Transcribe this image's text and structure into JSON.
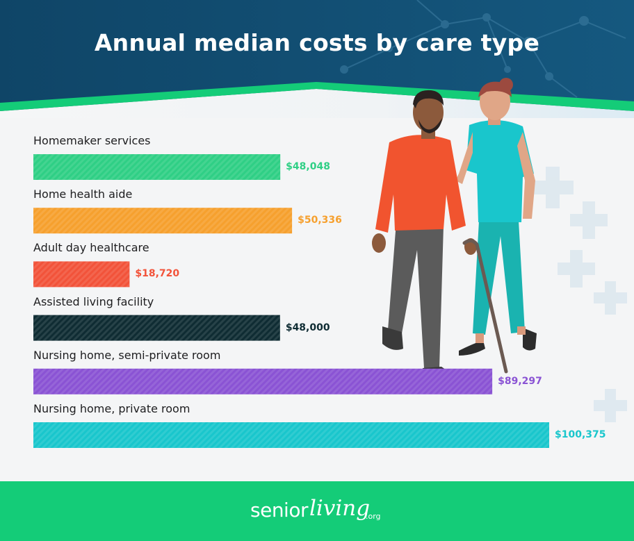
{
  "chart_data": {
    "type": "bar",
    "orientation": "horizontal",
    "title": "Annual median costs by care type",
    "categories": [
      "Homemaker services",
      "Home health aide",
      "Adult day healthcare",
      "Assisted living facility",
      "Nursing home, semi-private room",
      "Nursing home, private room"
    ],
    "values": [
      48048,
      50336,
      18720,
      48000,
      89297,
      100375
    ],
    "value_labels": [
      "$48,048",
      "$50,336",
      "$18,720",
      "$48,000",
      "$89,297",
      "$100,375"
    ],
    "colors": [
      "#2fcf85",
      "#f6a02e",
      "#f2533a",
      "#0f2c33",
      "#8a53d4",
      "#19c6cc"
    ],
    "label_colors": [
      "#2fcf85",
      "#f6a02e",
      "#f2533a",
      "#0f2c33",
      "#8a53d4",
      "#19c6cc"
    ],
    "xlim": [
      0,
      100375
    ],
    "grid": false,
    "legend": "none"
  },
  "branding": {
    "logo_main": "senior",
    "logo_script": "living",
    "logo_suffix": ".org"
  },
  "colors": {
    "header": "#124b6e",
    "accent_band": "#14cc78",
    "footer": "#14cc78",
    "background": "#f4f5f6"
  },
  "illustration": {
    "icon": "senior-man-with-cane-and-caregiver-illustration"
  }
}
